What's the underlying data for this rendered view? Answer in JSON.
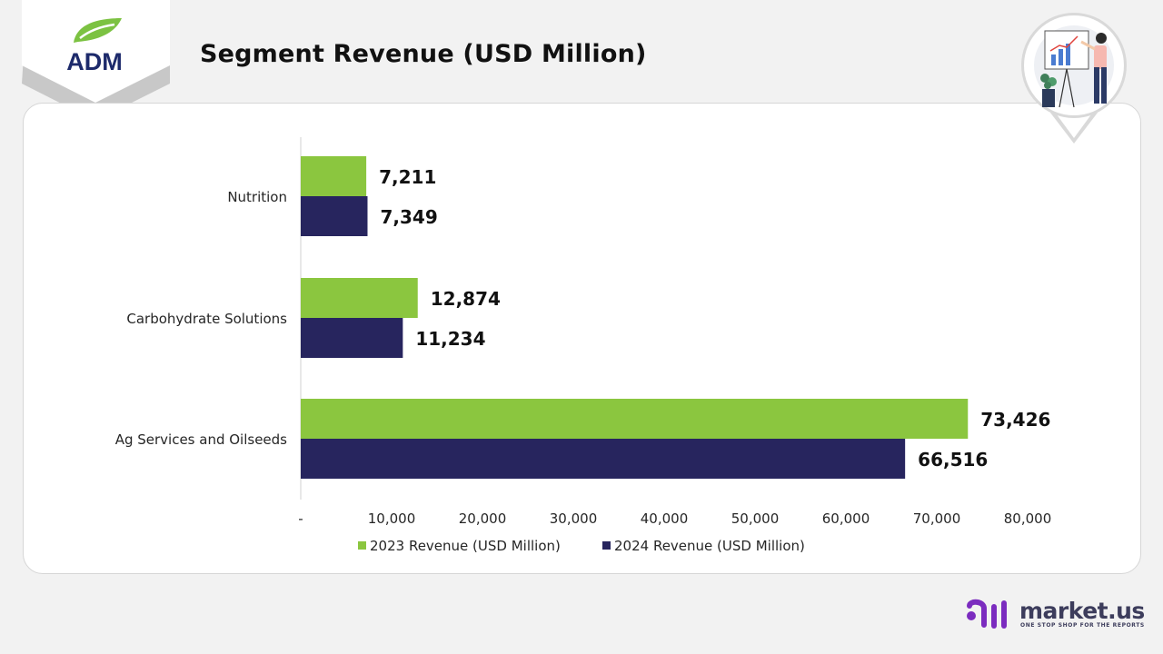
{
  "header": {
    "title": "Segment Revenue (USD Million)",
    "logo_text": "ADM"
  },
  "chart_data": {
    "type": "bar",
    "orientation": "horizontal",
    "title": "",
    "categories": [
      "Nutrition",
      "Carbohydrate Solutions",
      "Ag Services and Oilseeds"
    ],
    "series": [
      {
        "name": "2023 Revenue (USD Million)",
        "values": [
          7211,
          12874,
          73426
        ],
        "labels": [
          "7,211",
          "12,874",
          "73,426"
        ],
        "color": "#8bc63f"
      },
      {
        "name": "2024 Revenue (USD Million)",
        "values": [
          7349,
          11234,
          66516
        ],
        "labels": [
          "7,349",
          "11,234",
          "66,516"
        ],
        "color": "#27255e"
      }
    ],
    "xlim": [
      0,
      80000
    ],
    "xticks": [
      0,
      10000,
      20000,
      30000,
      40000,
      50000,
      60000,
      70000,
      80000
    ],
    "xtick_labels": [
      "-",
      "10,000",
      "20,000",
      "30,000",
      "40,000",
      "50,000",
      "60,000",
      "70,000",
      "80,000"
    ],
    "grid": false,
    "legend_position": "bottom"
  },
  "brand": {
    "name": "market.us",
    "tagline": "ONE STOP SHOP FOR THE REPORTS"
  },
  "colors": {
    "accent_green": "#8bc63f",
    "accent_navy": "#27255e",
    "brand_purple": "#7b2cbf"
  }
}
